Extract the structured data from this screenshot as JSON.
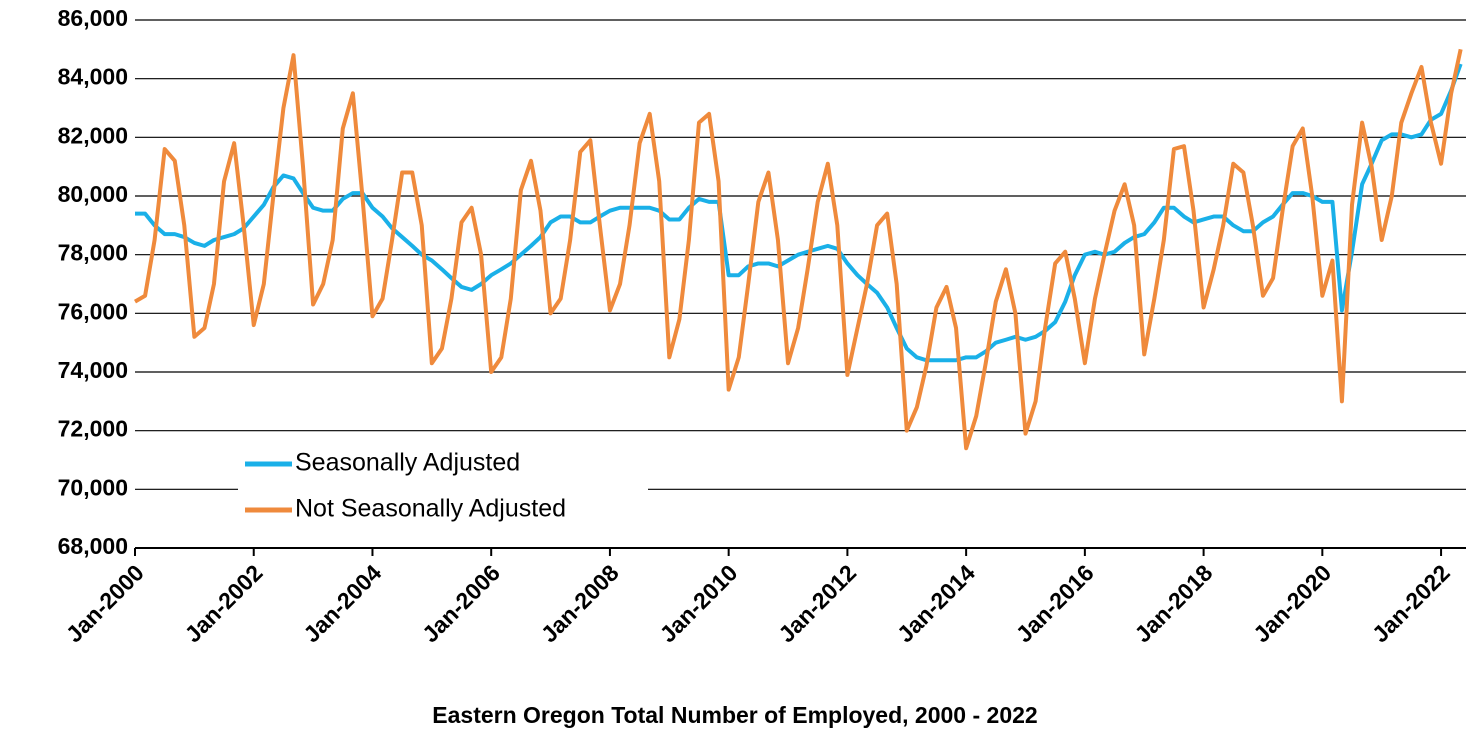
{
  "chart_data": {
    "type": "line",
    "title": "Eastern Oregon Total Number of Employed, 2000 - 2022",
    "x": [
      2000,
      2000.17,
      2000.33,
      2000.5,
      2000.67,
      2000.83,
      2001,
      2001.17,
      2001.33,
      2001.5,
      2001.67,
      2001.83,
      2002,
      2002.17,
      2002.33,
      2002.5,
      2002.67,
      2002.83,
      2003,
      2003.17,
      2003.33,
      2003.5,
      2003.67,
      2003.83,
      2004,
      2004.17,
      2004.33,
      2004.5,
      2004.67,
      2004.83,
      2005,
      2005.17,
      2005.33,
      2005.5,
      2005.67,
      2005.83,
      2006,
      2006.17,
      2006.33,
      2006.5,
      2006.67,
      2006.83,
      2007,
      2007.17,
      2007.33,
      2007.5,
      2007.67,
      2007.83,
      2008,
      2008.17,
      2008.33,
      2008.5,
      2008.67,
      2008.83,
      2009,
      2009.17,
      2009.33,
      2009.5,
      2009.67,
      2009.83,
      2010,
      2010.17,
      2010.33,
      2010.5,
      2010.67,
      2010.83,
      2011,
      2011.17,
      2011.33,
      2011.5,
      2011.67,
      2011.83,
      2012,
      2012.17,
      2012.33,
      2012.5,
      2012.67,
      2012.83,
      2013,
      2013.17,
      2013.33,
      2013.5,
      2013.67,
      2013.83,
      2014,
      2014.17,
      2014.33,
      2014.5,
      2014.67,
      2014.83,
      2015,
      2015.17,
      2015.33,
      2015.5,
      2015.67,
      2015.83,
      2016,
      2016.17,
      2016.33,
      2016.5,
      2016.67,
      2016.83,
      2017,
      2017.17,
      2017.33,
      2017.5,
      2017.67,
      2017.83,
      2018,
      2018.17,
      2018.33,
      2018.5,
      2018.67,
      2018.83,
      2019,
      2019.17,
      2019.33,
      2019.5,
      2019.67,
      2019.83,
      2020,
      2020.17,
      2020.33,
      2020.5,
      2020.67,
      2020.83,
      2021,
      2021.17,
      2021.33,
      2021.5,
      2021.67,
      2021.83,
      2022,
      2022.17,
      2022.33
    ],
    "series": [
      {
        "name": "Seasonally Adjusted",
        "color": "#1ab0e8",
        "values": [
          79400,
          79400,
          79000,
          78700,
          78700,
          78600,
          78400,
          78300,
          78500,
          78600,
          78700,
          78900,
          79300,
          79700,
          80300,
          80700,
          80600,
          80100,
          79600,
          79500,
          79500,
          79900,
          80100,
          80100,
          79600,
          79300,
          78900,
          78600,
          78300,
          78000,
          77800,
          77500,
          77200,
          76900,
          76800,
          77000,
          77300,
          77500,
          77700,
          78000,
          78300,
          78600,
          79100,
          79300,
          79300,
          79100,
          79100,
          79300,
          79500,
          79600,
          79600,
          79600,
          79600,
          79500,
          79200,
          79200,
          79600,
          79900,
          79800,
          79800,
          77300,
          77300,
          77600,
          77700,
          77700,
          77600,
          77800,
          78000,
          78100,
          78200,
          78300,
          78200,
          77700,
          77300,
          77000,
          76700,
          76200,
          75500,
          74800,
          74500,
          74400,
          74400,
          74400,
          74400,
          74500,
          74500,
          74700,
          75000,
          75100,
          75200,
          75100,
          75200,
          75400,
          75700,
          76400,
          77300,
          78000,
          78100,
          78000,
          78100,
          78400,
          78600,
          78700,
          79100,
          79600,
          79600,
          79300,
          79100,
          79200,
          79300,
          79300,
          79000,
          78800,
          78800,
          79100,
          79300,
          79700,
          80100,
          80100,
          80000,
          79800,
          79800,
          76100,
          78100,
          80400,
          81100,
          81900,
          82100,
          82100,
          82000,
          82100,
          82600,
          82800,
          83600,
          84500
        ]
      },
      {
        "name": "Not Seasonally Adjusted",
        "color": "#ef8a3c",
        "values": [
          76400,
          76600,
          78500,
          81600,
          81200,
          79000,
          75200,
          75500,
          77000,
          80500,
          81800,
          79000,
          75600,
          77000,
          80000,
          83000,
          84800,
          81000,
          76300,
          77000,
          78500,
          82300,
          83500,
          80000,
          75900,
          76500,
          78500,
          80800,
          80800,
          79000,
          74300,
          74800,
          76500,
          79100,
          79600,
          78000,
          74000,
          74500,
          76500,
          80200,
          81200,
          79500,
          76000,
          76500,
          78500,
          81500,
          81900,
          79000,
          76100,
          77000,
          79000,
          81800,
          82800,
          80500,
          74500,
          75800,
          78500,
          82500,
          82800,
          80500,
          73400,
          74500,
          77000,
          79800,
          80800,
          78500,
          74300,
          75500,
          77500,
          79800,
          81100,
          79000,
          73900,
          75500,
          77000,
          79000,
          79400,
          77000,
          72000,
          72800,
          74200,
          76200,
          76900,
          75500,
          71400,
          72500,
          74300,
          76400,
          77500,
          76000,
          71900,
          73000,
          75500,
          77700,
          78100,
          76500,
          74300,
          76500,
          78000,
          79500,
          80400,
          79000,
          74600,
          76500,
          78500,
          81600,
          81700,
          79500,
          76200,
          77500,
          79000,
          81100,
          80800,
          79000,
          76600,
          77200,
          79500,
          81700,
          82300,
          80000,
          76600,
          77800,
          73000,
          79700,
          82500,
          81000,
          78500,
          80000,
          82500,
          83500,
          84400,
          82500,
          81100,
          83500,
          85000
        ]
      }
    ],
    "xlim": [
      2000,
      2022.42
    ],
    "xticks": [
      {
        "value": 2000,
        "label": "Jan-2000"
      },
      {
        "value": 2002,
        "label": "Jan-2002"
      },
      {
        "value": 2004,
        "label": "Jan-2004"
      },
      {
        "value": 2006,
        "label": "Jan-2006"
      },
      {
        "value": 2008,
        "label": "Jan-2008"
      },
      {
        "value": 2010,
        "label": "Jan-2010"
      },
      {
        "value": 2012,
        "label": "Jan-2012"
      },
      {
        "value": 2014,
        "label": "Jan-2014"
      },
      {
        "value": 2016,
        "label": "Jan-2016"
      },
      {
        "value": 2018,
        "label": "Jan-2018"
      },
      {
        "value": 2020,
        "label": "Jan-2020"
      },
      {
        "value": 2022,
        "label": "Jan-2022"
      }
    ],
    "ylim": [
      68000,
      86000
    ],
    "yticks": [
      {
        "value": 68000,
        "label": "68,000"
      },
      {
        "value": 70000,
        "label": "70,000"
      },
      {
        "value": 72000,
        "label": "72,000"
      },
      {
        "value": 74000,
        "label": "74,000"
      },
      {
        "value": 76000,
        "label": "76,000"
      },
      {
        "value": 78000,
        "label": "78,000"
      },
      {
        "value": 80000,
        "label": "80,000"
      },
      {
        "value": 82000,
        "label": "82,000"
      },
      {
        "value": 84000,
        "label": "84,000"
      },
      {
        "value": 86000,
        "label": "86,000"
      }
    ],
    "grid": true
  }
}
